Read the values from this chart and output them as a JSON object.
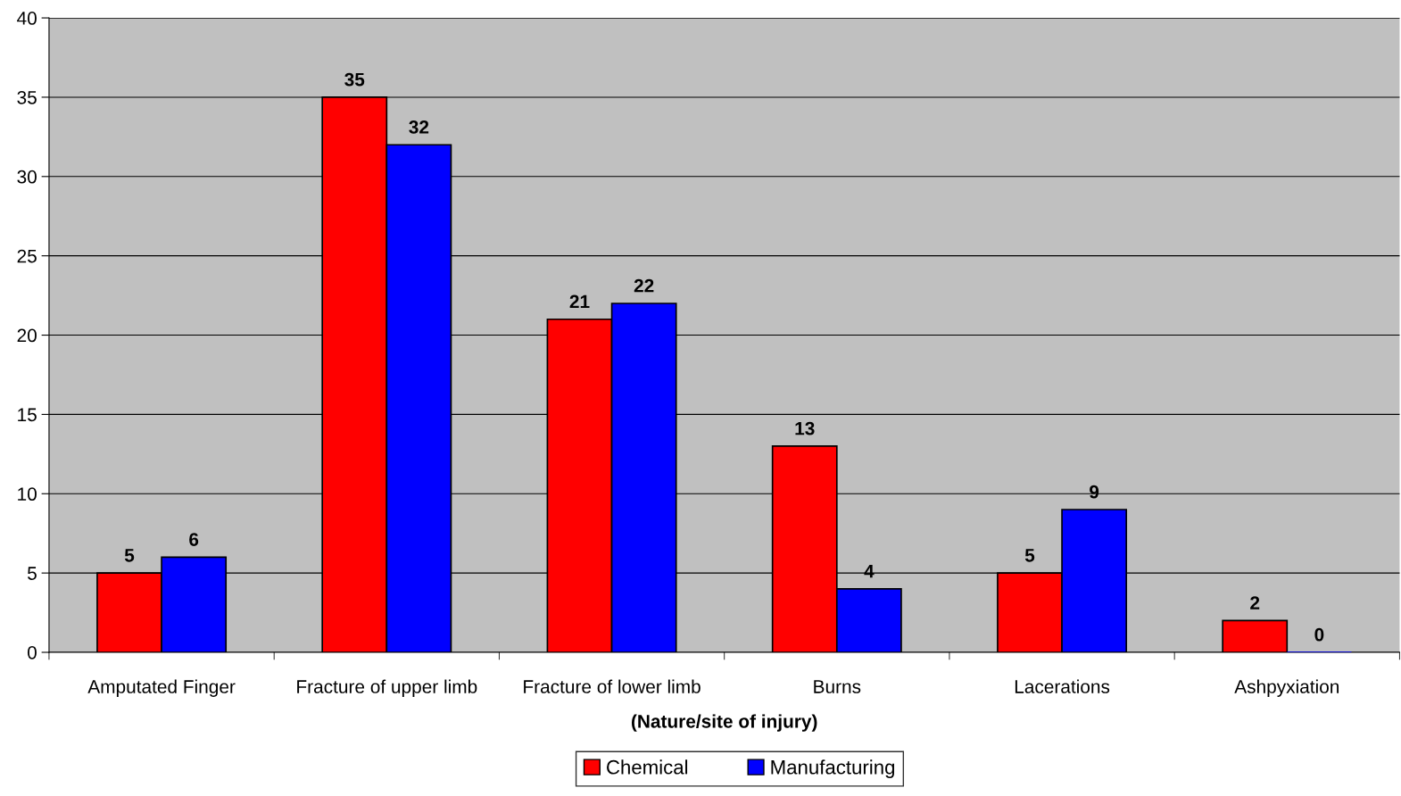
{
  "chart_data": {
    "type": "bar",
    "xlabel": "(Nature/site of injury)",
    "categories": [
      "Amputated Finger",
      "Fracture of upper limb",
      "Fracture of lower limb",
      "Burns",
      "Lacerations",
      "Ashpyxiation"
    ],
    "series": [
      {
        "name": "Chemical",
        "color": "#ff0000",
        "values": [
          5,
          35,
          21,
          13,
          5,
          2
        ]
      },
      {
        "name": "Manufacturing",
        "color": "#0000ff",
        "values": [
          6,
          32,
          22,
          4,
          9,
          0
        ]
      }
    ],
    "ylim": [
      0,
      40
    ],
    "yticks": [
      0,
      5,
      10,
      15,
      20,
      25,
      30,
      35,
      40
    ],
    "grid": "y",
    "legend": "bottom",
    "data_labels": true
  }
}
